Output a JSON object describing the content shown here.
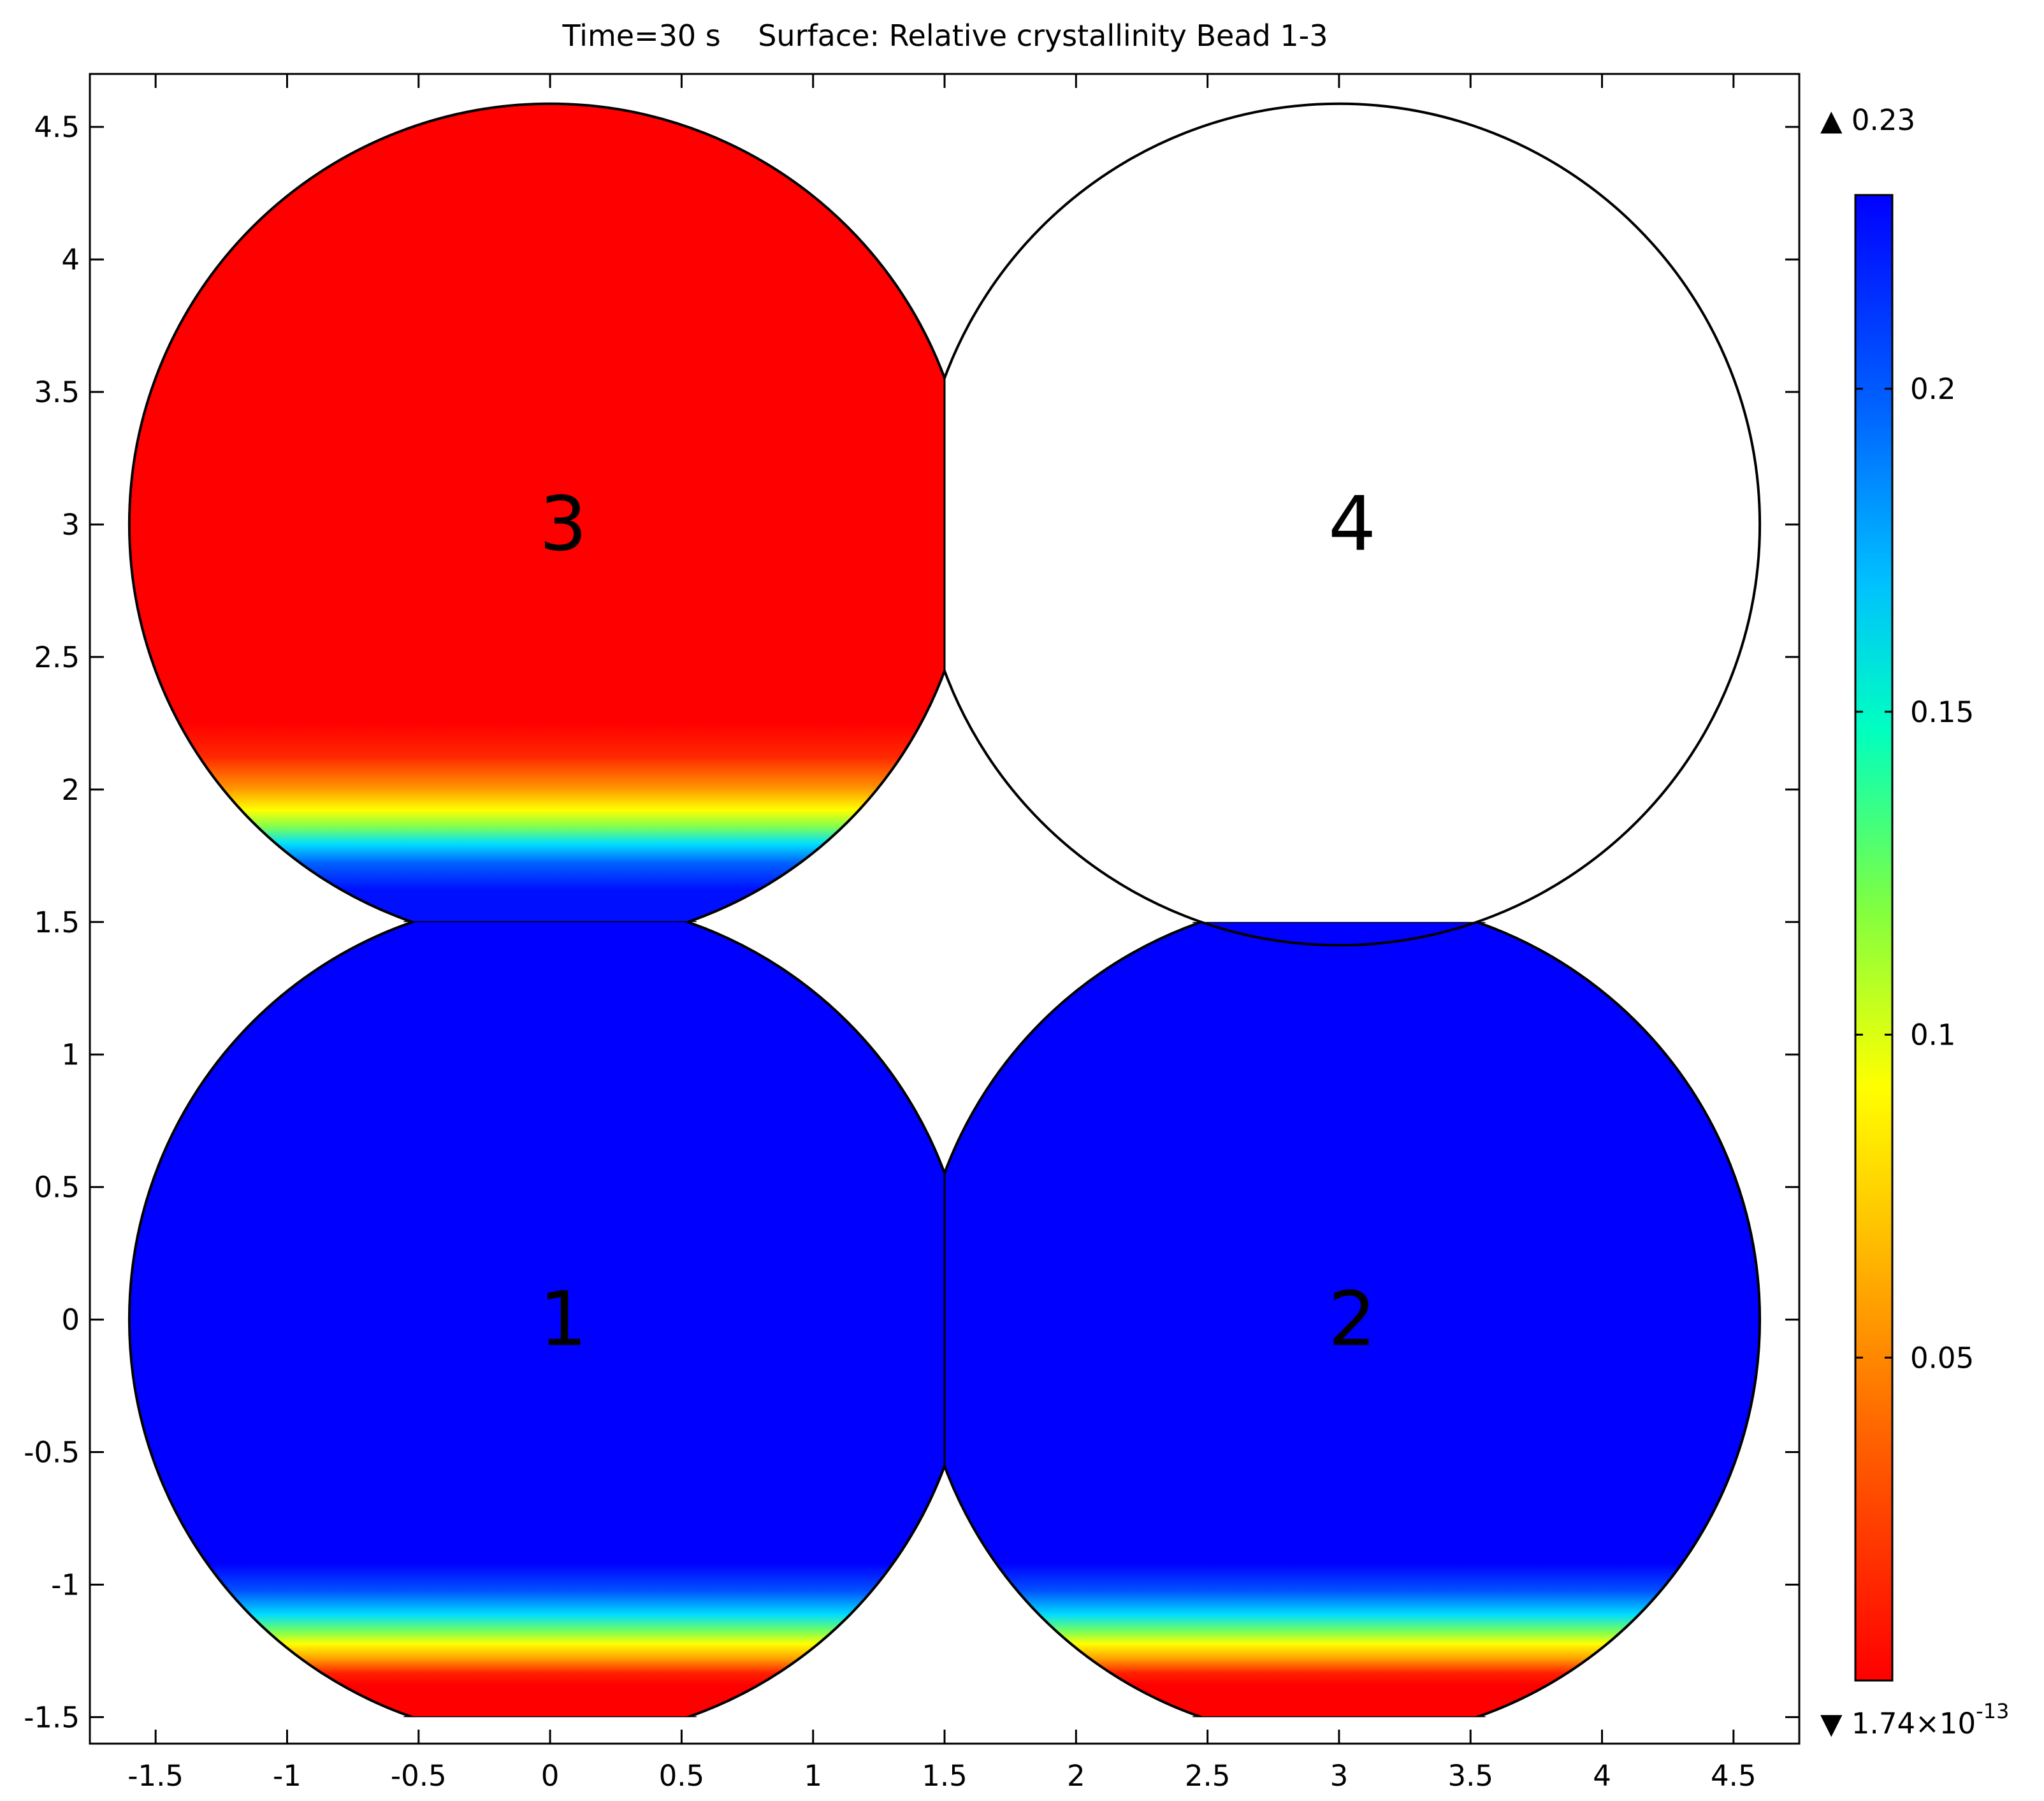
{
  "chart_data": {
    "type": "heatmap",
    "title": "Time=30 s    Surface: Relative crystallinity Bead 1-3",
    "xlabel": "",
    "ylabel": "",
    "xlim": [
      -1.75,
      4.75
    ],
    "ylim": [
      -1.6,
      4.7
    ],
    "xticks": [
      -1.5,
      -1,
      -0.5,
      0,
      0.5,
      1,
      1.5,
      2,
      2.5,
      3,
      3.5,
      4,
      4.5
    ],
    "xtick_labels": [
      "-1.5",
      "-1",
      "-0.5",
      "0",
      "0.5",
      "1",
      "1.5",
      "2",
      "2.5",
      "3",
      "3.5",
      "4",
      "4.5"
    ],
    "yticks": [
      4.5,
      4,
      3.5,
      3,
      2.5,
      2,
      1.5,
      1,
      0.5,
      0,
      -0.5,
      -1,
      -1.5
    ],
    "ytick_labels": [
      "4.5",
      "4",
      "3.5",
      "3",
      "2.5",
      "2",
      "1.5",
      "1",
      "0.5",
      "0",
      "-0.5",
      "-1",
      "-1.5"
    ],
    "grid": false,
    "colormap": "rainbow (red = low, blue = high)",
    "colorbar": {
      "min": 1.74e-13,
      "max": 0.23,
      "max_label": "▲ 0.23",
      "min_label_mantissa": "▼ 1.74×10",
      "min_label_exponent": "-13",
      "ticks": [
        0.2,
        0.15,
        0.1,
        0.05
      ],
      "tick_labels": [
        "0.2",
        "0.15",
        "0.1",
        "0.05"
      ]
    },
    "beads": [
      {
        "label": "1",
        "center": [
          0,
          0
        ],
        "radius": 1.6,
        "flat_bottom_y": -1.5,
        "state": "mostly 0.23, low-crystallinity region (~0) near bottom, transition around y≈-1.15"
      },
      {
        "label": "2",
        "center": [
          3,
          0
        ],
        "radius": 1.6,
        "flat_bottom_y": -1.5,
        "flat_top_y": 1.5,
        "state": "mostly 0.23, low-crystallinity region (~0) near bottom, transition around y≈-1.15"
      },
      {
        "label": "3",
        "center": [
          0,
          3
        ],
        "radius": 1.6,
        "flat_bottom_y": 1.5,
        "state": "mostly ~0, high crystallinity (0.23) only near bottom contact, transition around y≈1.85"
      },
      {
        "label": "4",
        "center": [
          3,
          3
        ],
        "radius": 1.6,
        "state": "not part of surface plot (unfilled outline)"
      }
    ]
  }
}
